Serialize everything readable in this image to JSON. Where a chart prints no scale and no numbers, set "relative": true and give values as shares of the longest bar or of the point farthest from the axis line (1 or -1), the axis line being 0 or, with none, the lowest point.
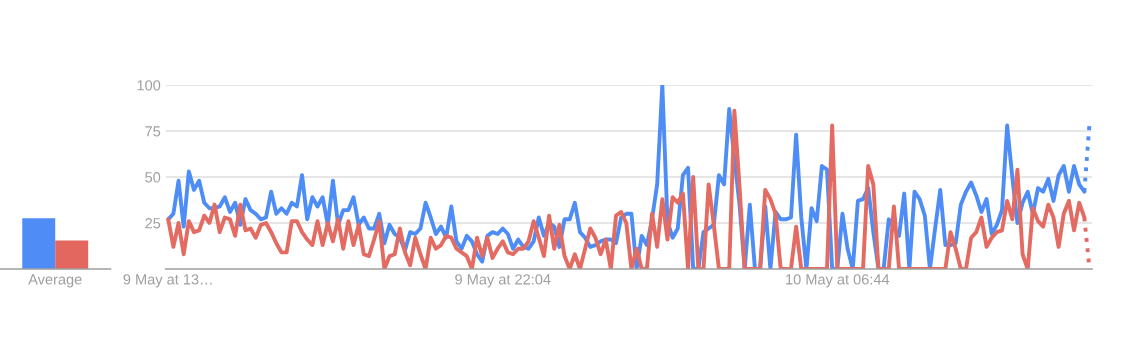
{
  "chart_data": [
    {
      "type": "bar",
      "relative": true,
      "categories": [
        "Average"
      ],
      "series": [
        {
          "color": "#4f8cf5",
          "values": [
            1
          ]
        },
        {
          "color": "#e4675f",
          "values": [
            0.56
          ]
        }
      ]
    },
    {
      "type": "line",
      "ylim": [
        0,
        100
      ],
      "yticks": [
        25,
        50,
        75,
        100
      ],
      "grid": "y",
      "legend": false,
      "categories": [
        "9 May at 13…",
        null,
        null,
        null,
        null,
        null,
        null,
        null,
        null,
        null,
        null,
        null,
        null,
        null,
        null,
        null,
        null,
        null,
        null,
        null,
        null,
        null,
        null,
        null,
        null,
        null,
        null,
        null,
        null,
        null,
        null,
        null,
        null,
        null,
        null,
        null,
        null,
        null,
        null,
        null,
        null,
        null,
        null,
        null,
        null,
        null,
        null,
        null,
        null,
        null,
        null,
        null,
        null,
        null,
        null,
        null,
        null,
        null,
        null,
        null,
        null,
        null,
        null,
        null,
        null,
        "9 May at 22:04",
        null,
        null,
        null,
        null,
        null,
        null,
        null,
        null,
        null,
        null,
        null,
        null,
        null,
        null,
        null,
        null,
        null,
        null,
        null,
        null,
        null,
        null,
        null,
        null,
        null,
        null,
        null,
        null,
        null,
        null,
        null,
        null,
        null,
        null,
        null,
        null,
        null,
        null,
        null,
        null,
        null,
        null,
        null,
        null,
        null,
        null,
        null,
        null,
        null,
        null,
        null,
        null,
        null,
        null,
        null,
        null,
        null,
        null,
        null,
        null,
        null,
        null,
        null,
        null,
        "10 May at 06:44",
        null,
        null,
        null,
        null,
        null,
        null,
        null,
        null,
        null,
        null,
        null,
        null,
        null,
        null,
        null,
        null,
        null,
        null,
        null,
        null,
        null,
        null,
        null,
        null,
        null,
        null,
        null,
        null,
        null,
        null,
        null,
        null,
        null,
        null,
        null,
        null,
        null,
        null,
        null,
        null,
        null,
        null,
        null,
        null,
        null,
        null,
        null,
        null,
        null
      ],
      "series": [
        {
          "color": "#4e8df5",
          "line_style": "solid",
          "values": [
            27,
            30,
            48,
            23,
            53,
            43,
            48,
            36,
            33,
            33,
            34,
            39,
            31,
            36,
            24,
            38,
            32,
            30,
            27,
            28,
            42,
            30,
            33,
            30,
            36,
            34,
            51,
            27,
            39,
            34,
            39,
            24,
            48,
            24,
            32,
            32,
            39,
            24,
            28,
            22,
            22,
            30,
            14,
            24,
            19,
            17,
            10,
            20,
            19,
            22,
            36,
            28,
            19,
            23,
            17,
            34,
            15,
            11,
            18,
            15,
            8,
            4,
            18,
            20,
            19,
            22,
            19,
            11,
            16,
            12,
            11,
            15,
            28,
            18,
            25,
            23,
            12,
            27,
            27,
            36,
            20,
            17,
            12,
            13,
            15,
            16,
            16,
            14,
            28,
            30,
            30,
            0,
            18,
            13,
            27,
            46,
            100,
            26,
            17,
            22,
            51,
            55,
            0,
            0,
            20,
            22,
            24,
            51,
            46,
            87,
            60,
            35,
            0,
            35,
            0,
            0,
            34,
            0,
            31,
            27,
            27,
            28,
            73,
            28,
            0,
            33,
            26,
            56,
            54,
            0,
            0,
            30,
            11,
            0,
            37,
            38,
            44,
            20,
            0,
            0,
            27,
            22,
            18,
            41,
            0,
            42,
            38,
            29,
            0,
            22,
            43,
            13,
            13,
            14,
            35,
            42,
            47,
            40,
            31,
            38,
            19,
            24,
            32,
            78,
            50,
            25,
            36,
            42,
            30,
            44,
            42,
            49,
            37,
            51,
            56,
            42,
            56,
            46,
            42,
            null
          ]
        },
        {
          "color": "#e36b62",
          "line_style": "solid",
          "values": [
            27,
            12,
            25,
            8,
            26,
            20,
            21,
            29,
            25,
            35,
            20,
            28,
            27,
            18,
            35,
            21,
            22,
            17,
            24,
            25,
            20,
            14,
            9,
            9,
            26,
            26,
            20,
            16,
            13,
            26,
            13,
            25,
            15,
            27,
            11,
            26,
            13,
            24,
            8,
            7,
            16,
            26,
            0,
            7,
            8,
            22,
            9,
            2,
            17,
            8,
            0,
            17,
            11,
            13,
            18,
            17,
            11,
            9,
            7,
            0,
            17,
            7,
            17,
            6,
            11,
            15,
            9,
            8,
            11,
            11,
            15,
            26,
            17,
            7,
            29,
            11,
            24,
            7,
            0,
            8,
            0,
            11,
            22,
            17,
            8,
            16,
            0,
            29,
            31,
            25,
            0,
            11,
            0,
            0,
            30,
            12,
            38,
            16,
            39,
            36,
            41,
            0,
            50,
            0,
            0,
            46,
            24,
            0,
            0,
            0,
            86,
            45,
            0,
            0,
            0,
            0,
            43,
            38,
            30,
            0,
            0,
            0,
            23,
            0,
            0,
            0,
            0,
            0,
            0,
            78,
            0,
            0,
            0,
            0,
            0,
            0,
            56,
            46,
            0,
            0,
            0,
            34,
            0,
            0,
            0,
            0,
            0,
            0,
            0,
            0,
            0,
            0,
            20,
            11,
            0,
            0,
            17,
            20,
            28,
            12,
            17,
            20,
            21,
            37,
            27,
            54,
            8,
            0,
            33,
            26,
            23,
            35,
            28,
            12,
            30,
            37,
            21,
            36,
            28,
            null
          ]
        },
        {
          "color": "#4e8df5",
          "line_style": "dotted",
          "values": [
            null,
            null,
            null,
            null,
            null,
            null,
            null,
            null,
            null,
            null,
            null,
            null,
            null,
            null,
            null,
            null,
            null,
            null,
            null,
            null,
            null,
            null,
            null,
            null,
            null,
            null,
            null,
            null,
            null,
            null,
            null,
            null,
            null,
            null,
            null,
            null,
            null,
            null,
            null,
            null,
            null,
            null,
            null,
            null,
            null,
            null,
            null,
            null,
            null,
            null,
            null,
            null,
            null,
            null,
            null,
            null,
            null,
            null,
            null,
            null,
            null,
            null,
            null,
            null,
            null,
            null,
            null,
            null,
            null,
            null,
            null,
            null,
            null,
            null,
            null,
            null,
            null,
            null,
            null,
            null,
            null,
            null,
            null,
            null,
            null,
            null,
            null,
            null,
            null,
            null,
            null,
            null,
            null,
            null,
            null,
            null,
            null,
            null,
            null,
            null,
            null,
            null,
            null,
            null,
            null,
            null,
            null,
            null,
            null,
            null,
            null,
            null,
            null,
            null,
            null,
            null,
            null,
            null,
            null,
            null,
            null,
            null,
            null,
            null,
            null,
            null,
            null,
            null,
            null,
            null,
            null,
            null,
            null,
            null,
            null,
            null,
            null,
            null,
            null,
            null,
            null,
            null,
            null,
            null,
            null,
            null,
            null,
            null,
            null,
            null,
            null,
            null,
            null,
            null,
            null,
            null,
            null,
            null,
            null,
            null,
            null,
            null,
            null,
            null,
            null,
            null,
            null,
            null,
            null,
            null,
            null,
            null,
            null,
            null,
            null,
            null,
            null,
            null,
            42,
            79
          ]
        },
        {
          "color": "#e36b62",
          "line_style": "dotted",
          "values": [
            null,
            null,
            null,
            null,
            null,
            null,
            null,
            null,
            null,
            null,
            null,
            null,
            null,
            null,
            null,
            null,
            null,
            null,
            null,
            null,
            null,
            null,
            null,
            null,
            null,
            null,
            null,
            null,
            null,
            null,
            null,
            null,
            null,
            null,
            null,
            null,
            null,
            null,
            null,
            null,
            null,
            null,
            null,
            null,
            null,
            null,
            null,
            null,
            null,
            null,
            null,
            null,
            null,
            null,
            null,
            null,
            null,
            null,
            null,
            null,
            null,
            null,
            null,
            null,
            null,
            null,
            null,
            null,
            null,
            null,
            null,
            null,
            null,
            null,
            null,
            null,
            null,
            null,
            null,
            null,
            null,
            null,
            null,
            null,
            null,
            null,
            null,
            null,
            null,
            null,
            null,
            null,
            null,
            null,
            null,
            null,
            null,
            null,
            null,
            null,
            null,
            null,
            null,
            null,
            null,
            null,
            null,
            null,
            null,
            null,
            null,
            null,
            null,
            null,
            null,
            null,
            null,
            null,
            null,
            null,
            null,
            null,
            null,
            null,
            null,
            null,
            null,
            null,
            null,
            null,
            null,
            null,
            null,
            null,
            null,
            null,
            null,
            null,
            null,
            null,
            null,
            null,
            null,
            null,
            null,
            null,
            null,
            null,
            null,
            null,
            null,
            null,
            null,
            null,
            null,
            null,
            null,
            null,
            null,
            null,
            null,
            null,
            null,
            null,
            null,
            null,
            null,
            null,
            null,
            null,
            null,
            null,
            null,
            null,
            null,
            null,
            null,
            null,
            28,
            0
          ]
        }
      ]
    }
  ]
}
